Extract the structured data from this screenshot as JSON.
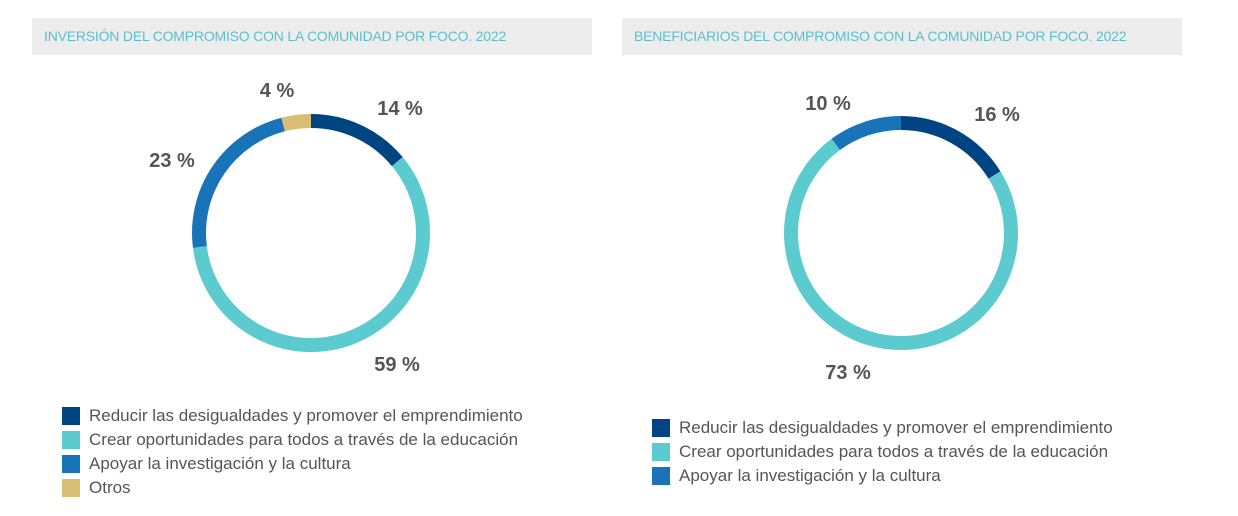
{
  "chart_data": [
    {
      "type": "pie",
      "donut": true,
      "title": "INVERSIÓN DEL COMPROMISO CON LA COMUNIDAD POR FOCO. 2022",
      "categories": [
        "Reducir las desigualdades y promover el emprendimiento",
        "Crear oportunidades para todos a través de la educación",
        "Apoyar la investigación y la cultura",
        "Otros"
      ],
      "values": [
        14,
        59,
        23,
        4
      ],
      "labels": [
        "14 %",
        "59 %",
        "23 %",
        "4 %"
      ],
      "colors": [
        "#004481",
        "#5bcbd0",
        "#1973b8",
        "#d8be75"
      ],
      "legend": "bottom"
    },
    {
      "type": "pie",
      "donut": true,
      "title": "BENEFICIARIOS DEL COMPROMISO CON LA COMUNIDAD POR FOCO. 2022",
      "categories": [
        "Reducir las desigualdades y promover el emprendimiento",
        "Crear oportunidades para todos a través de la educación",
        "Apoyar la investigación y la cultura"
      ],
      "values": [
        16,
        73,
        10
      ],
      "labels": [
        "16 %",
        "73 %",
        "10 %"
      ],
      "colors": [
        "#004481",
        "#5bcbd0",
        "#1973b8"
      ],
      "legend": "bottom"
    }
  ]
}
